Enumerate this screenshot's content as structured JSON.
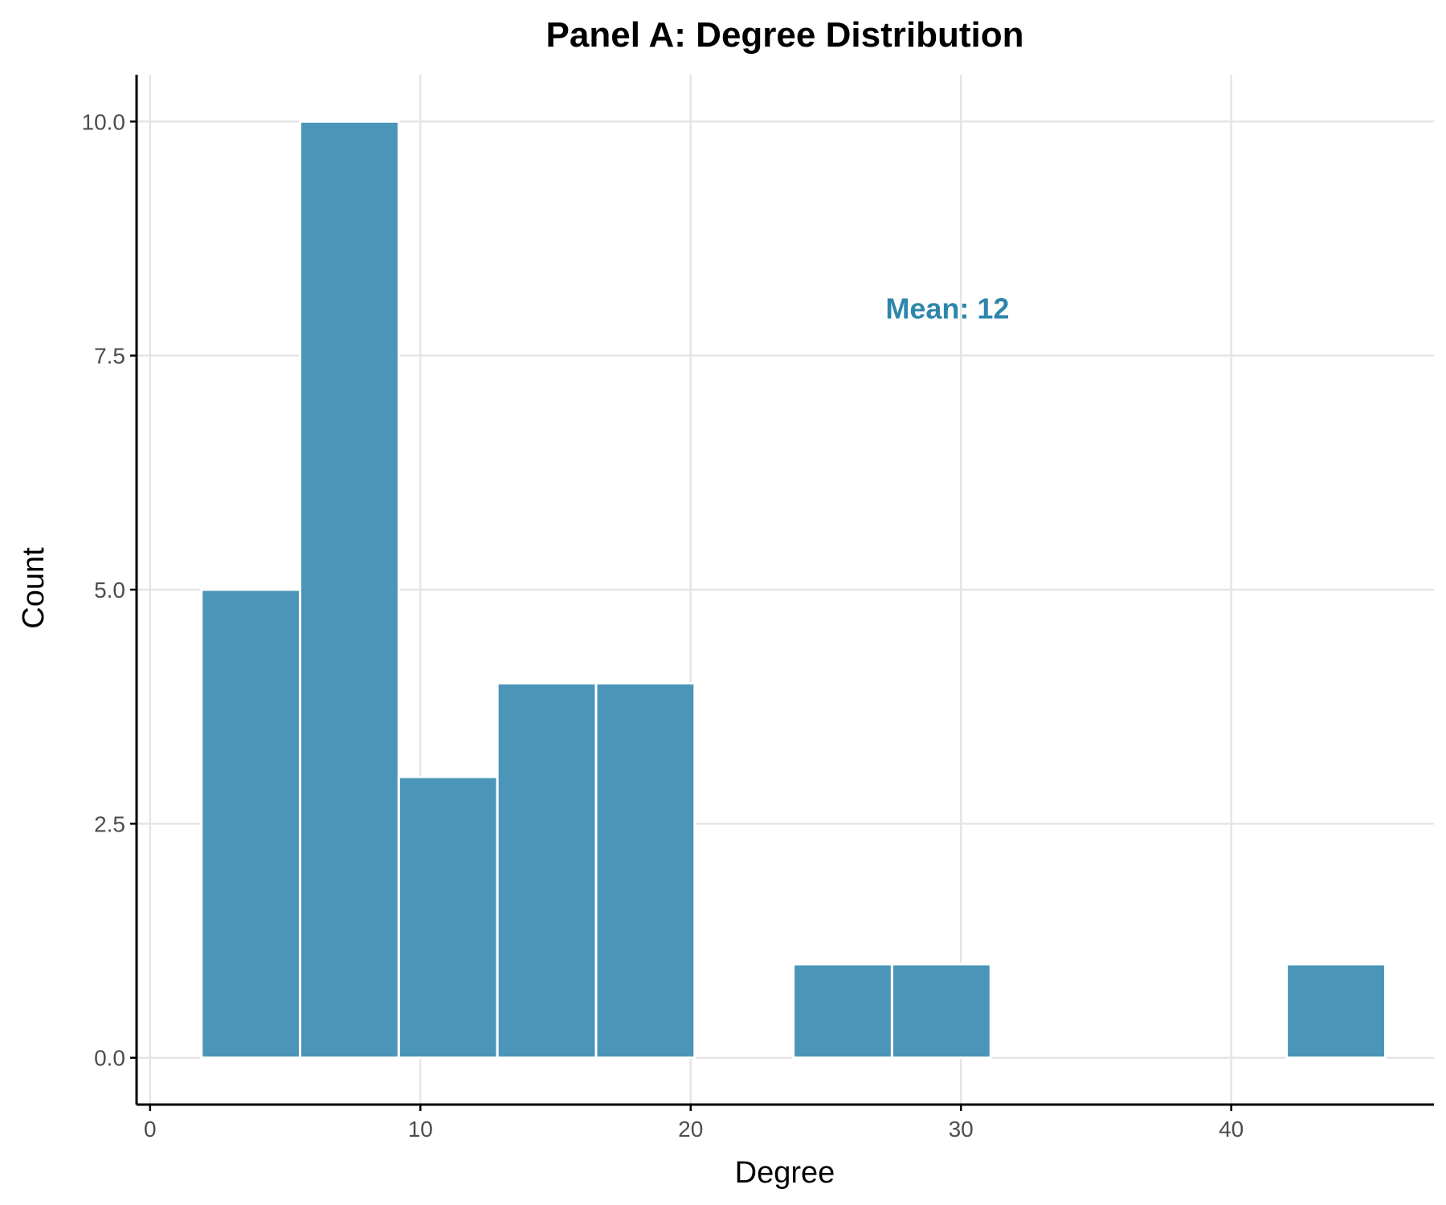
{
  "chart_data": {
    "type": "bar",
    "title": "Panel A: Degree Distribution",
    "xlabel": "Degree",
    "ylabel": "Count",
    "xlim": [
      -0.5,
      47.5
    ],
    "ylim": [
      -0.5,
      10.5
    ],
    "xticks": [
      0,
      10,
      20,
      30,
      40
    ],
    "xtick_labels": [
      "0",
      "10",
      "20",
      "30",
      "40"
    ],
    "yticks": [
      0,
      2.5,
      5,
      7.5,
      10
    ],
    "ytick_labels": [
      "0.0",
      "2.5",
      "5.0",
      "7.5",
      "10.0"
    ],
    "grid": true,
    "bar_color": "#4a95b8",
    "bins": [
      {
        "x0": 1.9,
        "x1": 5.55,
        "count": 5
      },
      {
        "x0": 5.55,
        "x1": 9.2,
        "count": 10
      },
      {
        "x0": 9.2,
        "x1": 12.85,
        "count": 3
      },
      {
        "x0": 12.85,
        "x1": 16.5,
        "count": 4
      },
      {
        "x0": 16.5,
        "x1": 20.15,
        "count": 4
      },
      {
        "x0": 20.15,
        "x1": 23.8,
        "count": 0
      },
      {
        "x0": 23.8,
        "x1": 27.45,
        "count": 1
      },
      {
        "x0": 27.45,
        "x1": 31.1,
        "count": 1
      },
      {
        "x0": 31.1,
        "x1": 34.75,
        "count": 0
      },
      {
        "x0": 34.75,
        "x1": 38.4,
        "count": 0
      },
      {
        "x0": 38.4,
        "x1": 42.05,
        "count": 0
      },
      {
        "x0": 42.05,
        "x1": 45.7,
        "count": 1
      }
    ],
    "annotation": {
      "text": "Mean: 12",
      "x": 29.5,
      "y": 8,
      "color": "#2e86ab"
    }
  }
}
